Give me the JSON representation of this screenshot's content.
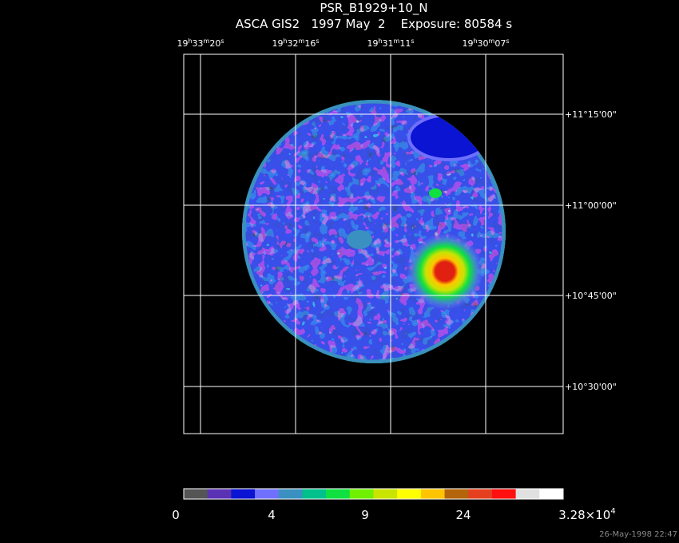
{
  "header": {
    "title": "PSR_B1929+10_N",
    "subtitle": "ASCA GIS2   1997 May  2    Exposure: 80584 s"
  },
  "ra_labels": [
    [
      "19",
      "h",
      "33",
      "m",
      "20",
      "s"
    ],
    [
      "19",
      "h",
      "32",
      "m",
      "16",
      "s"
    ],
    [
      "19",
      "h",
      "31",
      "m",
      "11",
      "s"
    ],
    [
      "19",
      "h",
      "30",
      "m",
      "07",
      "s"
    ]
  ],
  "dec_labels": [
    "+11°15'00\"",
    "+11°00'00\"",
    "+10°45'00\"",
    "+10°30'00\""
  ],
  "colorbar": {
    "colors": [
      "#555555",
      "#5a32b4",
      "#0a14d2",
      "#7070ff",
      "#3a90c0",
      "#00c08c",
      "#10e040",
      "#70f000",
      "#c8e400",
      "#ffff00",
      "#ffc400",
      "#b4640a",
      "#e44020",
      "#ff1010",
      "#e0e0e0",
      "#ffffff"
    ],
    "labels": [
      {
        "text": "0"
      },
      {
        "text": "4"
      },
      {
        "text": "9"
      },
      {
        "text": "24"
      },
      {
        "text": "3.28×10",
        "sup": "4"
      }
    ]
  },
  "timestamp": "26-May-1998 22:47"
}
